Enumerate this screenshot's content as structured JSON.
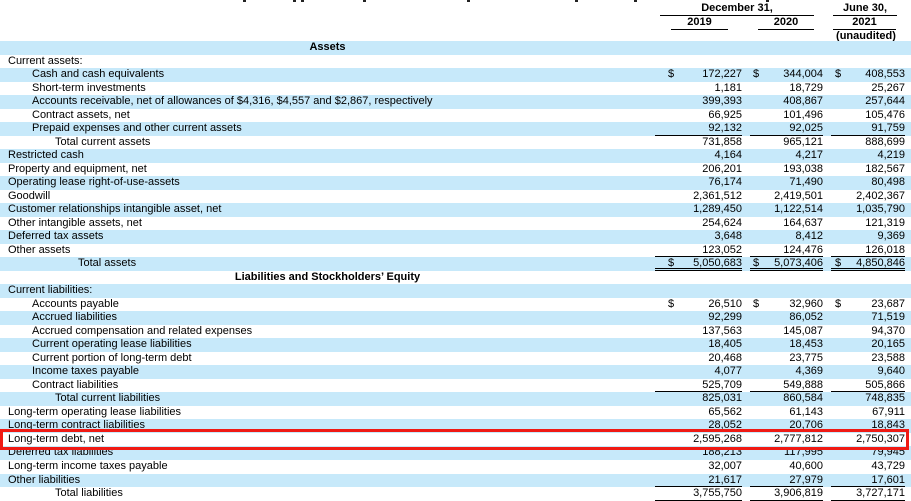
{
  "columns": {
    "group_dec": "December 31,",
    "group_jun": "June 30,",
    "y2019": "2019",
    "y2020": "2020",
    "y2021": "2021",
    "unaudited_note": "(unaudited)"
  },
  "colors": {
    "row_shade": "#c7e9fa",
    "highlight_red": "#ef1a14",
    "text": "#000000"
  },
  "highlight": {
    "target_row": "Long-term debt, net"
  },
  "rows": [
    {
      "label": "Assets",
      "type": "section",
      "shade": true
    },
    {
      "label": "Current assets:",
      "indent": 0,
      "shade": false,
      "values": [
        "",
        "",
        ""
      ]
    },
    {
      "label": "Cash and cash equivalents",
      "indent": 1,
      "shade": true,
      "dollar": true,
      "values": [
        "172,227",
        "344,004",
        "408,553"
      ]
    },
    {
      "label": "Short-term investments",
      "indent": 1,
      "shade": false,
      "values": [
        "1,181",
        "18,729",
        "25,267"
      ]
    },
    {
      "label": "Accounts receivable, net of allowances of $4,316, $4,557 and $2,867, respectively",
      "indent": 1,
      "shade": true,
      "values": [
        "399,393",
        "408,867",
        "257,644"
      ]
    },
    {
      "label": "Contract assets, net",
      "indent": 1,
      "shade": false,
      "values": [
        "66,925",
        "101,496",
        "105,476"
      ]
    },
    {
      "label": "Prepaid expenses and other current assets",
      "indent": 1,
      "shade": true,
      "underline": "single",
      "values": [
        "92,132",
        "92,025",
        "91,759"
      ]
    },
    {
      "label": "Total current assets",
      "indent": 2,
      "shade": false,
      "values": [
        "731,858",
        "965,121",
        "888,699"
      ]
    },
    {
      "label": "Restricted cash",
      "indent": 0,
      "shade": true,
      "values": [
        "4,164",
        "4,217",
        "4,219"
      ]
    },
    {
      "label": "Property and equipment, net",
      "indent": 0,
      "shade": false,
      "values": [
        "206,201",
        "193,038",
        "182,567"
      ]
    },
    {
      "label": "Operating lease right-of-use-assets",
      "indent": 0,
      "shade": true,
      "values": [
        "76,174",
        "71,490",
        "80,498"
      ]
    },
    {
      "label": "Goodwill",
      "indent": 0,
      "shade": false,
      "values": [
        "2,361,512",
        "2,419,501",
        "2,402,367"
      ]
    },
    {
      "label": "Customer relationships intangible asset, net",
      "indent": 0,
      "shade": true,
      "values": [
        "1,289,450",
        "1,122,514",
        "1,035,790"
      ]
    },
    {
      "label": "Other intangible assets, net",
      "indent": 0,
      "shade": false,
      "values": [
        "254,624",
        "164,637",
        "121,319"
      ]
    },
    {
      "label": "Deferred tax assets",
      "indent": 0,
      "shade": true,
      "values": [
        "3,648",
        "8,412",
        "9,369"
      ]
    },
    {
      "label": "Other assets",
      "indent": 0,
      "shade": false,
      "underline": "single",
      "values": [
        "123,052",
        "124,476",
        "126,018"
      ]
    },
    {
      "label": "Total assets",
      "indent": 3,
      "shade": true,
      "dollar": true,
      "underline": "double",
      "values": [
        "5,050,683",
        "5,073,406",
        "4,850,846"
      ]
    },
    {
      "label": "Liabilities and Stockholders’ Equity",
      "type": "section",
      "shade": false
    },
    {
      "label": "Current liabilities:",
      "indent": 0,
      "shade": true,
      "values": [
        "",
        "",
        ""
      ]
    },
    {
      "label": "Accounts payable",
      "indent": 1,
      "shade": false,
      "dollar": true,
      "values": [
        "26,510",
        "32,960",
        "23,687"
      ]
    },
    {
      "label": "Accrued liabilities",
      "indent": 1,
      "shade": true,
      "values": [
        "92,299",
        "86,052",
        "71,519"
      ]
    },
    {
      "label": "Accrued compensation and related expenses",
      "indent": 1,
      "shade": false,
      "values": [
        "137,563",
        "145,087",
        "94,370"
      ]
    },
    {
      "label": "Current operating lease liabilities",
      "indent": 1,
      "shade": true,
      "values": [
        "18,405",
        "18,453",
        "20,165"
      ]
    },
    {
      "label": "Current portion of long-term debt",
      "indent": 1,
      "shade": false,
      "values": [
        "20,468",
        "23,775",
        "23,588"
      ]
    },
    {
      "label": "Income taxes payable",
      "indent": 1,
      "shade": true,
      "values": [
        "4,077",
        "4,369",
        "9,640"
      ]
    },
    {
      "label": "Contract liabilities",
      "indent": 1,
      "shade": false,
      "underline": "single",
      "values": [
        "525,709",
        "549,888",
        "505,866"
      ]
    },
    {
      "label": "Total current liabilities",
      "indent": 2,
      "shade": true,
      "values": [
        "825,031",
        "860,584",
        "748,835"
      ]
    },
    {
      "label": "Long-term operating lease liabilities",
      "indent": 0,
      "shade": false,
      "values": [
        "65,562",
        "61,143",
        "67,911"
      ]
    },
    {
      "label": "Long-term contract liabilities",
      "indent": 0,
      "shade": true,
      "values": [
        "28,052",
        "20,706",
        "18,843"
      ]
    },
    {
      "label": "Long-term debt, net",
      "indent": 0,
      "shade": false,
      "highlight": true,
      "values": [
        "2,595,268",
        "2,777,812",
        "2,750,307"
      ]
    },
    {
      "label": "Deferred tax liabilities",
      "indent": 0,
      "shade": true,
      "values": [
        "188,213",
        "117,995",
        "79,945"
      ]
    },
    {
      "label": "Long-term income taxes payable",
      "indent": 0,
      "shade": false,
      "values": [
        "32,007",
        "40,600",
        "43,729"
      ]
    },
    {
      "label": "Other liabilities",
      "indent": 0,
      "shade": true,
      "underline": "single",
      "values": [
        "21,617",
        "27,979",
        "17,601"
      ]
    },
    {
      "label": "Total liabilities",
      "indent": 2,
      "shade": false,
      "underline": "single",
      "values": [
        "3,755,750",
        "3,906,819",
        "3,727,171"
      ]
    }
  ]
}
